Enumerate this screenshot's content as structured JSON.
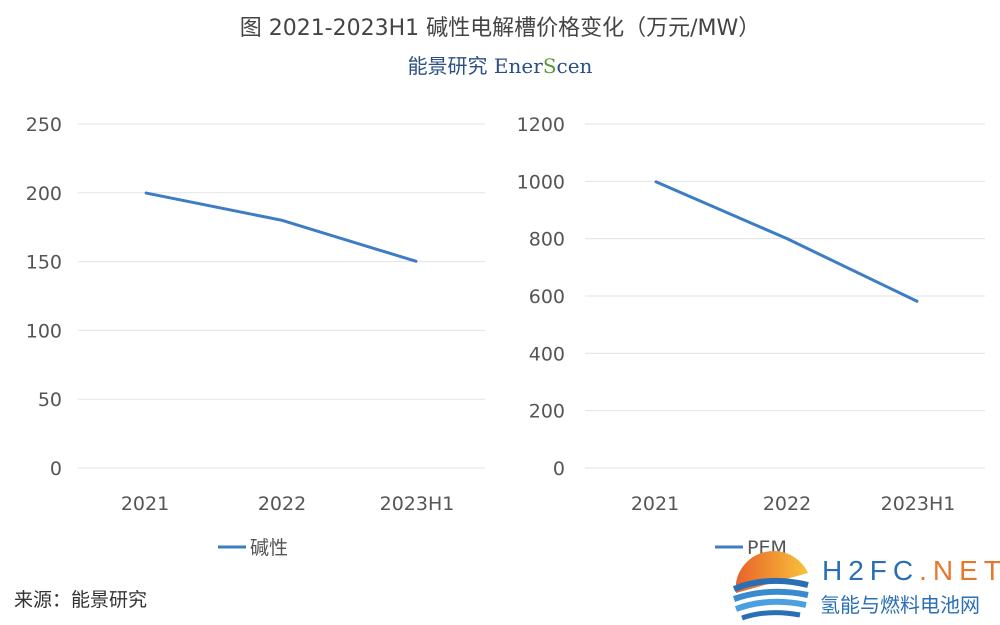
{
  "title": "图  2021-2023H1 碱性电解槽价格变化（万元/MW）",
  "brand": {
    "cn": "能景研究",
    "en_a": "Ener",
    "en_b": "S",
    "en_c": "cen"
  },
  "source": "来源：能景研究",
  "watermark": {
    "en_a": "H2FC",
    "en_b": ".NET",
    "cn": "氢能与燃料电池网"
  },
  "colors": {
    "line": "#3c7dc4",
    "grid": "#e3e3e3",
    "text": "#555555"
  },
  "chart_data": [
    {
      "type": "line",
      "categories": [
        "2021",
        "2022",
        "2023H1"
      ],
      "series": [
        {
          "name": "碱性",
          "values": [
            200,
            180,
            150
          ]
        }
      ],
      "ylim": [
        0,
        250
      ],
      "yticks": [
        "0",
        "50",
        "100",
        "150",
        "200",
        "250"
      ],
      "grid": true,
      "legend": "bottom"
    },
    {
      "type": "line",
      "categories": [
        "2021",
        "2022",
        "2023H1"
      ],
      "series": [
        {
          "name": "PEM",
          "values": [
            1000,
            800,
            580
          ]
        }
      ],
      "ylim": [
        0,
        1200
      ],
      "yticks": [
        "0",
        "200",
        "400",
        "600",
        "800",
        "1000",
        "1200"
      ],
      "grid": true,
      "legend": "bottom"
    }
  ]
}
